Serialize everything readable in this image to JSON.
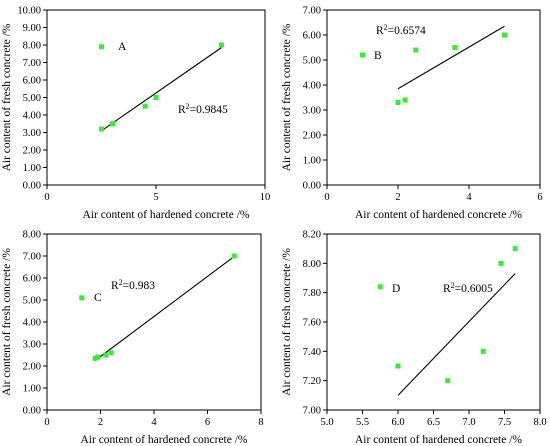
{
  "chart_data": [
    {
      "type": "scatter",
      "panel_label": "A",
      "xlabel": "Air content of hardened concrete /%",
      "ylabel": "Air content of fresh concrete /%",
      "xlim": [
        0,
        10
      ],
      "ylim": [
        0,
        10
      ],
      "x_ticks": [
        "0",
        "5",
        "10"
      ],
      "y_ticks": [
        "0.00",
        "1.00",
        "2.00",
        "3.00",
        "4.00",
        "5.00",
        "6.00",
        "7.00",
        "8.00",
        "9.00",
        "10.00"
      ],
      "points": [
        {
          "x": 2.5,
          "y": 7.9
        },
        {
          "x": 2.5,
          "y": 3.2
        },
        {
          "x": 3.0,
          "y": 3.5
        },
        {
          "x": 4.5,
          "y": 4.5
        },
        {
          "x": 5.0,
          "y": 5.0
        },
        {
          "x": 8.0,
          "y": 8.0
        }
      ],
      "fit_line": {
        "x": [
          2.5,
          8.0
        ],
        "y": [
          3.1,
          7.85
        ]
      },
      "r2_text": "R²=0.9845",
      "marker_color": "#33ee33"
    },
    {
      "type": "scatter",
      "panel_label": "B",
      "xlabel": "Air content of hardened concrete /%",
      "ylabel": "Air content of fresh concrete /%",
      "xlim": [
        0,
        6
      ],
      "ylim": [
        0,
        7
      ],
      "x_ticks": [
        "0",
        "2",
        "4",
        "6"
      ],
      "y_ticks": [
        "0.00",
        "1.00",
        "2.00",
        "3.00",
        "4.00",
        "5.00",
        "6.00",
        "7.00"
      ],
      "points": [
        {
          "x": 1.0,
          "y": 5.2
        },
        {
          "x": 2.0,
          "y": 3.3
        },
        {
          "x": 2.2,
          "y": 3.4
        },
        {
          "x": 2.5,
          "y": 5.4
        },
        {
          "x": 3.6,
          "y": 5.5
        },
        {
          "x": 5.0,
          "y": 6.0
        }
      ],
      "fit_line": {
        "x": [
          2.0,
          5.0
        ],
        "y": [
          3.85,
          6.35
        ]
      },
      "r2_text": "R²=0.6574",
      "marker_color": "#33ee33"
    },
    {
      "type": "scatter",
      "panel_label": "C",
      "xlabel": "Air content of hardened concrete /%",
      "ylabel": "Air content of fresh concrete /%",
      "xlim": [
        0,
        8
      ],
      "ylim": [
        0,
        8
      ],
      "x_ticks": [
        "0",
        "2",
        "4",
        "6",
        "8"
      ],
      "y_ticks": [
        "0.00",
        "1.00",
        "2.00",
        "3.00",
        "4.00",
        "5.00",
        "6.00",
        "7.00",
        "8.00"
      ],
      "points": [
        {
          "x": 1.3,
          "y": 5.1
        },
        {
          "x": 1.8,
          "y": 2.35
        },
        {
          "x": 1.9,
          "y": 2.4
        },
        {
          "x": 2.2,
          "y": 2.5
        },
        {
          "x": 2.4,
          "y": 2.6
        },
        {
          "x": 7.0,
          "y": 7.0
        }
      ],
      "fit_line": {
        "x": [
          1.8,
          7.0
        ],
        "y": [
          2.25,
          6.98
        ]
      },
      "r2_text": "R²=0.983",
      "marker_color": "#33ee33"
    },
    {
      "type": "scatter",
      "panel_label": "D",
      "xlabel": "Air content of hardened concrete /%",
      "ylabel": "Air content of fresh concrete /%",
      "xlim": [
        5.0,
        8.0
      ],
      "ylim": [
        7.0,
        8.2
      ],
      "x_ticks": [
        "5.0",
        "5.5",
        "6.0",
        "6.5",
        "7.0",
        "7.5",
        "8.0"
      ],
      "y_ticks": [
        "7.00",
        "7.20",
        "7.40",
        "7.60",
        "7.80",
        "8.00",
        "8.20"
      ],
      "points": [
        {
          "x": 5.75,
          "y": 7.84
        },
        {
          "x": 6.0,
          "y": 7.3
        },
        {
          "x": 6.7,
          "y": 7.2
        },
        {
          "x": 7.2,
          "y": 7.4
        },
        {
          "x": 7.45,
          "y": 8.0
        },
        {
          "x": 7.65,
          "y": 8.1
        }
      ],
      "fit_line": {
        "x": [
          6.0,
          7.65
        ],
        "y": [
          7.1,
          7.93
        ]
      },
      "r2_text": "R²=0.6005",
      "marker_color": "#33ee33"
    }
  ]
}
